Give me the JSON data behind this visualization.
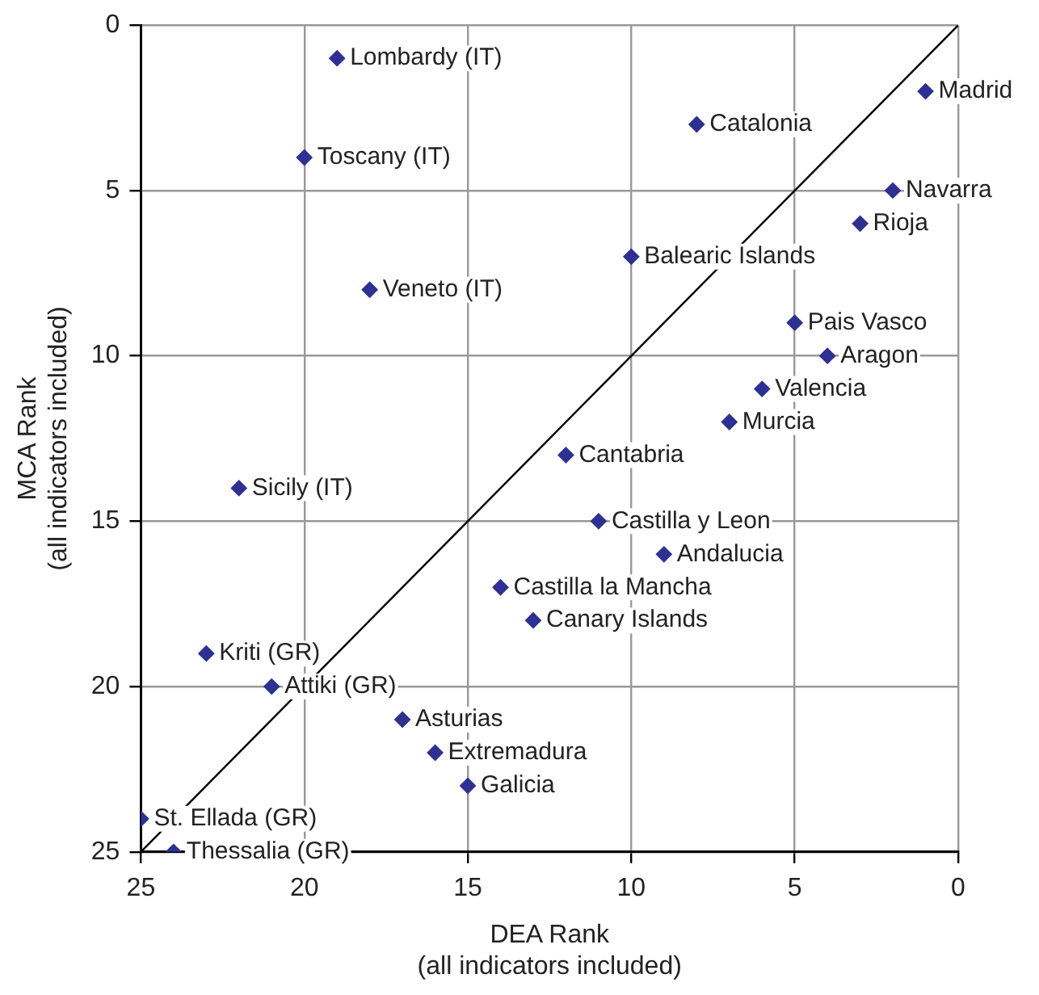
{
  "chart_data": {
    "type": "scatter",
    "xlabel": "DEA Rank\n(all indicators included)",
    "ylabel": "MCA Rank\n(all indicators included)",
    "xlim": [
      25,
      0
    ],
    "ylim": [
      25,
      0
    ],
    "xticks": [
      25,
      20,
      15,
      10,
      5,
      0
    ],
    "yticks": [
      25,
      20,
      15,
      10,
      5,
      0
    ],
    "grid": true,
    "legend": false,
    "marker": "diamond",
    "series": [
      {
        "color": "#2e3192",
        "x": [
          19,
          20,
          18,
          22,
          23,
          21,
          25,
          24,
          1,
          8,
          2,
          3,
          10,
          5,
          4,
          6,
          7,
          12,
          11,
          9,
          14,
          13,
          17,
          16,
          15
        ],
        "values": [
          1,
          4,
          8,
          14,
          19,
          20,
          24,
          25,
          2,
          3,
          5,
          6,
          7,
          9,
          10,
          11,
          12,
          13,
          15,
          16,
          17,
          18,
          21,
          22,
          23
        ]
      },
      {
        "type": "line",
        "color": "#000000",
        "line_style": "solid",
        "marker": "none",
        "x": [
          25,
          0
        ],
        "values": [
          25,
          0
        ]
      }
    ],
    "annotations": [
      {
        "text": "Lombardy (IT)",
        "x": 19,
        "y": 1
      },
      {
        "text": "Toscany (IT)",
        "x": 20,
        "y": 4
      },
      {
        "text": "Veneto (IT)",
        "x": 18,
        "y": 8
      },
      {
        "text": "Sicily (IT)",
        "x": 22,
        "y": 14
      },
      {
        "text": "Kriti (GR)",
        "x": 23,
        "y": 19
      },
      {
        "text": "Attiki (GR)",
        "x": 21,
        "y": 20
      },
      {
        "text": "St. Ellada (GR)",
        "x": 25,
        "y": 24
      },
      {
        "text": "Thessalia (GR)",
        "x": 24,
        "y": 25
      },
      {
        "text": "Madrid",
        "x": 1,
        "y": 2
      },
      {
        "text": "Catalonia",
        "x": 8,
        "y": 3
      },
      {
        "text": "Navarra",
        "x": 2,
        "y": 5
      },
      {
        "text": "Rioja",
        "x": 3,
        "y": 6
      },
      {
        "text": "Balearic Islands",
        "x": 10,
        "y": 7
      },
      {
        "text": "Pais Vasco",
        "x": 5,
        "y": 9
      },
      {
        "text": "Aragon",
        "x": 4,
        "y": 10
      },
      {
        "text": "Valencia",
        "x": 6,
        "y": 11
      },
      {
        "text": "Murcia",
        "x": 7,
        "y": 12
      },
      {
        "text": "Cantabria",
        "x": 12,
        "y": 13
      },
      {
        "text": "Castilla y Leon",
        "x": 11,
        "y": 15
      },
      {
        "text": "Andalucia",
        "x": 9,
        "y": 16
      },
      {
        "text": "Castilla la Mancha",
        "x": 14,
        "y": 17
      },
      {
        "text": "Canary Islands",
        "x": 13,
        "y": 18
      },
      {
        "text": "Asturias",
        "x": 17,
        "y": 21
      },
      {
        "text": "Extremadura",
        "x": 16,
        "y": 22
      },
      {
        "text": "Galicia",
        "x": 15,
        "y": 23
      }
    ]
  }
}
